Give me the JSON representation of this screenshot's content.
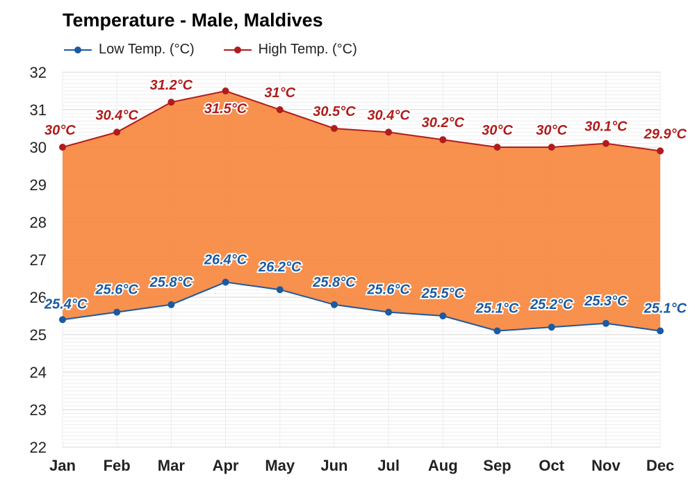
{
  "chart_data": {
    "type": "area",
    "title": "Temperature - Male, Maldives",
    "categories": [
      "Jan",
      "Feb",
      "Mar",
      "Apr",
      "May",
      "Jun",
      "Jul",
      "Aug",
      "Sep",
      "Oct",
      "Nov",
      "Dec"
    ],
    "series": [
      {
        "name": "Low Temp. (°C)",
        "color": "#1a5aa0",
        "values": [
          25.4,
          25.6,
          25.8,
          26.4,
          26.2,
          25.8,
          25.6,
          25.5,
          25.1,
          25.2,
          25.3,
          25.1
        ],
        "labels": [
          "25.4°C",
          "25.6°C",
          "25.8°C",
          "26.4°C",
          "26.2°C",
          "25.8°C",
          "25.6°C",
          "25.5°C",
          "25.1°C",
          "25.2°C",
          "25.3°C",
          "25.1°C"
        ]
      },
      {
        "name": "High Temp. (°C)",
        "color": "#b01c1c",
        "values": [
          30,
          30.4,
          31.2,
          31.5,
          31,
          30.5,
          30.4,
          30.2,
          30,
          30,
          30.1,
          29.9
        ],
        "labels": [
          "30°C",
          "30.4°C",
          "31.2°C",
          "31.5°C",
          "31°C",
          "30.5°C",
          "30.4°C",
          "30.2°C",
          "30°C",
          "30°C",
          "30.1°C",
          "29.9°C"
        ]
      }
    ],
    "fill_color": "#f7873f",
    "ylim": [
      22,
      32
    ],
    "yticks": [
      "22",
      "23",
      "24",
      "25",
      "26",
      "27",
      "28",
      "29",
      "30",
      "31",
      "32"
    ],
    "grid": true,
    "legend_position": "top-left"
  }
}
